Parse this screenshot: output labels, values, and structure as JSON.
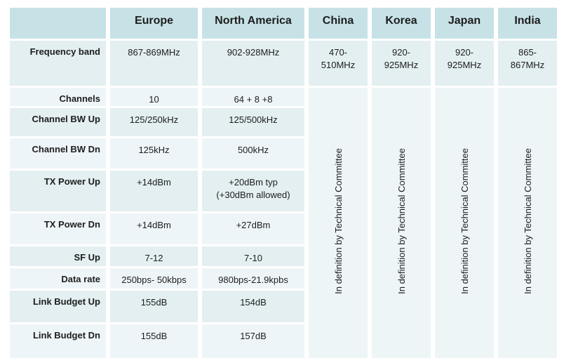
{
  "chart_data": {
    "type": "table",
    "columns": [
      "",
      "Europe",
      "North America",
      "China",
      "Korea",
      "Japan",
      "India"
    ],
    "rows": [
      {
        "label": "Frequency band",
        "europe": "867-869MHz",
        "north_america": "902-928MHz",
        "china": "470-\n510MHz",
        "korea": "920-\n925MHz",
        "japan": "920-\n925MHz",
        "india": "865-\n867MHz"
      },
      {
        "label": "Channels",
        "europe": "10",
        "north_america": "64 + 8 +8"
      },
      {
        "label": "Channel BW Up",
        "europe": "125/250kHz",
        "north_america": "125/500kHz"
      },
      {
        "label": "Channel BW Dn",
        "europe": "125kHz",
        "north_america": "500kHz"
      },
      {
        "label": "TX Power Up",
        "europe": "+14dBm",
        "north_america": "+20dBm typ\n(+30dBm allowed)"
      },
      {
        "label": "TX Power Dn",
        "europe": "+14dBm",
        "north_america": "+27dBm"
      },
      {
        "label": "SF Up",
        "europe": "7-12",
        "north_america": "7-10"
      },
      {
        "label": "Data rate",
        "europe": "250bps- 50kbps",
        "north_america": "980bps-21.9kpbs"
      },
      {
        "label": "Link Budget Up",
        "europe": "155dB",
        "north_america": "154dB"
      },
      {
        "label": "Link Budget Dn",
        "europe": "155dB",
        "north_america": "157dB"
      }
    ],
    "in_definition_note": "In definition by Technical Committee",
    "note_columns": [
      "China",
      "Korea",
      "Japan",
      "India"
    ],
    "legend_position": "none",
    "grid": false
  },
  "colors": {
    "header_bg": "#c7e2e6",
    "row_odd_bg": "#e3eff1",
    "row_even_bg": "#eef5f8",
    "merged_bg": "#edf5f7",
    "text": "#1d1d1d"
  }
}
